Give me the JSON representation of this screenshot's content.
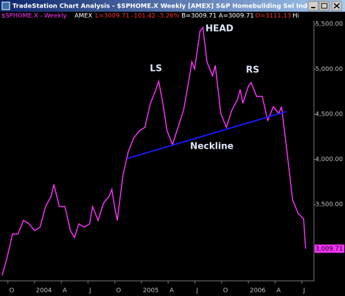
{
  "window": {
    "title": "TradeStation Chart Analysis - $SPHOME.X  Weekly  [AMEX] S&P Homebuilding Sel Industry"
  },
  "header": {
    "exchange": "AMEX",
    "last": "L=3009.71 -101.42 -3.26%",
    "bid": "B=3009.71",
    "ask": "A=3009.71",
    "open": "O=3111.13",
    "high": "Hi"
  },
  "chart_data": {
    "type": "line",
    "series": [
      {
        "name": "$SPHOME.X - Weekly",
        "color": "#ff33ff",
        "x": [
          2003.697,
          2003.742,
          2003.794,
          2003.845,
          2003.897,
          2003.948,
          2004.0,
          2004.052,
          2004.103,
          2004.155,
          2004.181,
          2004.232,
          2004.284,
          2004.335,
          2004.374,
          2004.413,
          2004.465,
          2004.516,
          2004.542,
          2004.594,
          2004.645,
          2004.697,
          2004.723,
          2004.748,
          2004.774,
          2004.826,
          2004.877,
          2004.929,
          2004.981,
          2005.032,
          2005.084,
          2005.135,
          2005.161,
          2005.2,
          2005.239,
          2005.29,
          2005.342,
          2005.394,
          2005.445,
          2005.471,
          2005.497,
          2005.548,
          2005.574,
          2005.613,
          2005.665,
          2005.69,
          2005.742,
          2005.794,
          2005.845,
          2005.897,
          2005.923,
          2005.948,
          2006.0,
          2006.026,
          2006.077,
          2006.129,
          2006.181,
          2006.232,
          2006.284,
          2006.31,
          2006.361,
          2006.413,
          2006.465,
          2006.516,
          2006.535
        ],
        "values": [
          2714,
          2904,
          3172,
          3172,
          3324,
          3286,
          3210,
          3248,
          3477,
          3591,
          3721,
          3477,
          3477,
          3210,
          3133,
          3286,
          3248,
          3286,
          3477,
          3324,
          3515,
          3591,
          3668,
          3477,
          3324,
          3821,
          4088,
          4240,
          4317,
          4355,
          4622,
          4775,
          4866,
          4622,
          4317,
          4164,
          4355,
          4546,
          4889,
          5080,
          5004,
          5424,
          5462,
          5080,
          4927,
          5042,
          4508,
          4355,
          4546,
          4660,
          4775,
          4622,
          4813,
          4851,
          4698,
          4698,
          4431,
          4584,
          4508,
          4584,
          4088,
          3553,
          3401,
          3340,
          3009.71
        ]
      }
    ],
    "neckline": {
      "label": "Neckline",
      "color": "#1a1aff",
      "x": [
        2004.871,
        2006.355
      ],
      "values": [
        4011,
        4530
      ]
    },
    "annotations": [
      "LS",
      "HEAD",
      "RS"
    ],
    "last_price": {
      "value": 3009.71,
      "label": "3,009.71"
    },
    "xlim": [
      2003.677,
      2006.613
    ],
    "ylim": [
      2653,
      5538
    ],
    "xticks": [
      {
        "value": 2003.75,
        "label": "O"
      },
      2004,
      {
        "value": 2004.25,
        "label": "A"
      },
      {
        "value": 2004.5,
        "label": "J"
      },
      {
        "value": 2004.75,
        "label": "O"
      },
      2005,
      {
        "value": 2005.25,
        "label": "A"
      },
      {
        "value": 2005.5,
        "label": "J"
      },
      {
        "value": 2005.75,
        "label": "O"
      },
      2006,
      {
        "value": 2006.25,
        "label": "A"
      },
      {
        "value": 2006.5,
        "label": "J"
      }
    ],
    "yticks": [
      {
        "value": 3500,
        "label": "3,500.00"
      },
      {
        "value": 4000,
        "label": "4,000.00"
      },
      {
        "value": 4500,
        "label": "4,500.00"
      },
      {
        "value": 5000,
        "label": "5,000.00"
      },
      {
        "value": 5500,
        "label": "5,500.00"
      }
    ]
  }
}
